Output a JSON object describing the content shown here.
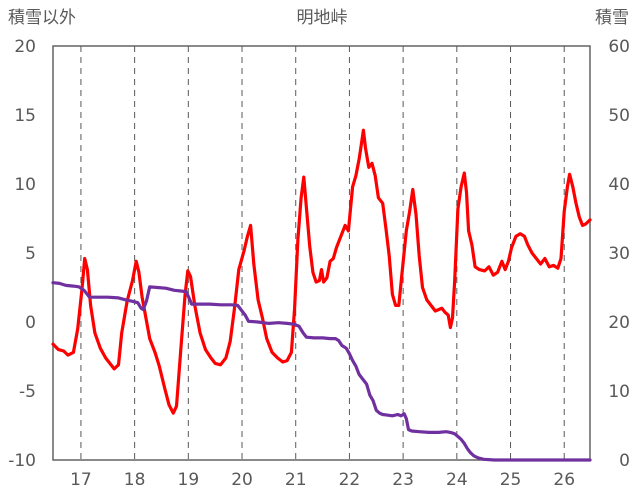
{
  "chart_data": {
    "type": "line",
    "title": "明地峠",
    "left_axis_label": "積雪以外",
    "right_axis_label": "積雪",
    "left_ylim": [
      -10,
      20
    ],
    "left_yticks": [
      "-10",
      "-5",
      "0",
      "5",
      "10",
      "15",
      "20"
    ],
    "right_ylim": [
      0,
      60
    ],
    "right_yticks": [
      "0",
      "10",
      "20",
      "30",
      "40",
      "50",
      "60"
    ],
    "xlim": [
      16.48,
      26.48
    ],
    "xticks": [
      "17",
      "18",
      "19",
      "20",
      "21",
      "22",
      "23",
      "24",
      "25",
      "26"
    ],
    "vertical_gridlines": [
      17,
      18,
      19,
      20,
      21,
      22,
      23,
      24,
      25,
      26
    ],
    "grid": "vertical-dashed",
    "colors": {
      "temperature": "#ff0000",
      "snow_depth": "#7030a0",
      "grid": "#595959",
      "axis_text": "#595959"
    },
    "series": [
      {
        "axis": "left",
        "color": "#ff0000",
        "points": [
          [
            16.48,
            -1.6
          ],
          [
            16.58,
            -2.0
          ],
          [
            16.68,
            -2.1
          ],
          [
            16.76,
            -2.4
          ],
          [
            16.86,
            -2.2
          ],
          [
            16.94,
            -0.5
          ],
          [
            17.02,
            2.4
          ],
          [
            17.07,
            4.6
          ],
          [
            17.12,
            3.8
          ],
          [
            17.18,
            1.2
          ],
          [
            17.26,
            -0.8
          ],
          [
            17.36,
            -1.9
          ],
          [
            17.46,
            -2.6
          ],
          [
            17.54,
            -3.0
          ],
          [
            17.62,
            -3.4
          ],
          [
            17.7,
            -3.1
          ],
          [
            17.76,
            -0.8
          ],
          [
            17.86,
            1.5
          ],
          [
            17.96,
            3.0
          ],
          [
            18.03,
            4.4
          ],
          [
            18.08,
            3.6
          ],
          [
            18.14,
            1.8
          ],
          [
            18.2,
            0.5
          ],
          [
            18.28,
            -1.2
          ],
          [
            18.38,
            -2.2
          ],
          [
            18.46,
            -3.2
          ],
          [
            18.56,
            -4.8
          ],
          [
            18.64,
            -6.0
          ],
          [
            18.72,
            -6.6
          ],
          [
            18.78,
            -6.1
          ],
          [
            18.86,
            -2.0
          ],
          [
            18.94,
            2.0
          ],
          [
            18.99,
            3.7
          ],
          [
            19.04,
            3.3
          ],
          [
            19.12,
            1.2
          ],
          [
            19.22,
            -0.8
          ],
          [
            19.32,
            -2.0
          ],
          [
            19.42,
            -2.6
          ],
          [
            19.5,
            -3.0
          ],
          [
            19.6,
            -3.1
          ],
          [
            19.7,
            -2.6
          ],
          [
            19.78,
            -1.4
          ],
          [
            19.86,
            1.0
          ],
          [
            19.94,
            3.8
          ],
          [
            20.04,
            5.2
          ],
          [
            20.1,
            6.2
          ],
          [
            20.16,
            7.0
          ],
          [
            20.22,
            4.2
          ],
          [
            20.3,
            1.6
          ],
          [
            20.38,
            0.3
          ],
          [
            20.46,
            -1.2
          ],
          [
            20.56,
            -2.2
          ],
          [
            20.66,
            -2.6
          ],
          [
            20.76,
            -2.9
          ],
          [
            20.84,
            -2.8
          ],
          [
            20.92,
            -2.2
          ],
          [
            20.98,
            1.0
          ],
          [
            21.04,
            6.0
          ],
          [
            21.1,
            9.0
          ],
          [
            21.15,
            10.5
          ],
          [
            21.2,
            8.2
          ],
          [
            21.26,
            5.5
          ],
          [
            21.32,
            3.6
          ],
          [
            21.38,
            2.9
          ],
          [
            21.44,
            3.0
          ],
          [
            21.48,
            3.8
          ],
          [
            21.52,
            2.9
          ],
          [
            21.58,
            3.2
          ],
          [
            21.64,
            4.4
          ],
          [
            21.7,
            4.6
          ],
          [
            21.76,
            5.4
          ],
          [
            21.84,
            6.2
          ],
          [
            21.92,
            7.0
          ],
          [
            21.98,
            6.6
          ],
          [
            22.06,
            9.8
          ],
          [
            22.12,
            10.6
          ],
          [
            22.18,
            11.8
          ],
          [
            22.22,
            12.8
          ],
          [
            22.26,
            13.9
          ],
          [
            22.3,
            12.6
          ],
          [
            22.36,
            11.2
          ],
          [
            22.42,
            11.5
          ],
          [
            22.48,
            10.6
          ],
          [
            22.54,
            9.0
          ],
          [
            22.62,
            8.6
          ],
          [
            22.68,
            6.8
          ],
          [
            22.74,
            4.8
          ],
          [
            22.8,
            2.0
          ],
          [
            22.86,
            1.2
          ],
          [
            22.92,
            1.2
          ],
          [
            22.98,
            3.6
          ],
          [
            23.06,
            6.6
          ],
          [
            23.12,
            8.0
          ],
          [
            23.18,
            9.6
          ],
          [
            23.24,
            7.8
          ],
          [
            23.3,
            4.8
          ],
          [
            23.36,
            2.5
          ],
          [
            23.44,
            1.6
          ],
          [
            23.52,
            1.2
          ],
          [
            23.6,
            0.8
          ],
          [
            23.66,
            0.9
          ],
          [
            23.72,
            1.0
          ],
          [
            23.78,
            0.7
          ],
          [
            23.84,
            0.5
          ],
          [
            23.88,
            -0.4
          ],
          [
            23.92,
            0.3
          ],
          [
            23.96,
            3.0
          ],
          [
            24.02,
            8.2
          ],
          [
            24.08,
            9.8
          ],
          [
            24.14,
            10.8
          ],
          [
            24.18,
            9.4
          ],
          [
            24.22,
            6.6
          ],
          [
            24.28,
            5.6
          ],
          [
            24.34,
            4.0
          ],
          [
            24.42,
            3.8
          ],
          [
            24.52,
            3.7
          ],
          [
            24.6,
            4.0
          ],
          [
            24.68,
            3.4
          ],
          [
            24.76,
            3.6
          ],
          [
            24.84,
            4.4
          ],
          [
            24.9,
            3.8
          ],
          [
            24.96,
            4.4
          ],
          [
            25.02,
            5.4
          ],
          [
            25.1,
            6.2
          ],
          [
            25.18,
            6.4
          ],
          [
            25.26,
            6.2
          ],
          [
            25.32,
            5.6
          ],
          [
            25.4,
            5.0
          ],
          [
            25.48,
            4.6
          ],
          [
            25.56,
            4.2
          ],
          [
            25.64,
            4.6
          ],
          [
            25.72,
            4.0
          ],
          [
            25.8,
            4.1
          ],
          [
            25.88,
            3.9
          ],
          [
            25.94,
            4.6
          ],
          [
            26.0,
            8.0
          ],
          [
            26.06,
            9.8
          ],
          [
            26.1,
            10.7
          ],
          [
            26.16,
            9.8
          ],
          [
            26.22,
            8.6
          ],
          [
            26.28,
            7.6
          ],
          [
            26.34,
            7.0
          ],
          [
            26.4,
            7.1
          ],
          [
            26.48,
            7.4
          ]
        ]
      },
      {
        "axis": "right",
        "color": "#7030a0",
        "points": [
          [
            16.48,
            25.7
          ],
          [
            16.6,
            25.6
          ],
          [
            16.72,
            25.3
          ],
          [
            16.86,
            25.2
          ],
          [
            16.96,
            25.1
          ],
          [
            17.06,
            24.6
          ],
          [
            17.16,
            23.6
          ],
          [
            17.3,
            23.6
          ],
          [
            17.5,
            23.6
          ],
          [
            17.7,
            23.5
          ],
          [
            17.84,
            23.2
          ],
          [
            17.96,
            23.0
          ],
          [
            18.06,
            22.8
          ],
          [
            18.12,
            22.0
          ],
          [
            18.16,
            21.8
          ],
          [
            18.22,
            23.0
          ],
          [
            18.28,
            25.1
          ],
          [
            18.42,
            25.0
          ],
          [
            18.58,
            24.9
          ],
          [
            18.74,
            24.6
          ],
          [
            18.86,
            24.5
          ],
          [
            18.96,
            24.4
          ],
          [
            19.04,
            23.0
          ],
          [
            19.06,
            22.6
          ],
          [
            19.2,
            22.6
          ],
          [
            19.4,
            22.6
          ],
          [
            19.6,
            22.5
          ],
          [
            19.8,
            22.5
          ],
          [
            19.92,
            22.4
          ],
          [
            19.98,
            21.8
          ],
          [
            20.06,
            21.0
          ],
          [
            20.12,
            20.1
          ],
          [
            20.3,
            20.0
          ],
          [
            20.5,
            19.8
          ],
          [
            20.68,
            19.9
          ],
          [
            20.84,
            19.8
          ],
          [
            20.96,
            19.7
          ],
          [
            21.06,
            19.4
          ],
          [
            21.14,
            18.4
          ],
          [
            21.2,
            17.8
          ],
          [
            21.34,
            17.7
          ],
          [
            21.5,
            17.7
          ],
          [
            21.64,
            17.6
          ],
          [
            21.74,
            17.6
          ],
          [
            21.8,
            17.3
          ],
          [
            21.86,
            16.6
          ],
          [
            21.94,
            16.2
          ],
          [
            22.0,
            15.4
          ],
          [
            22.06,
            14.4
          ],
          [
            22.12,
            13.6
          ],
          [
            22.18,
            12.4
          ],
          [
            22.26,
            11.6
          ],
          [
            22.32,
            11.0
          ],
          [
            22.38,
            9.4
          ],
          [
            22.44,
            8.6
          ],
          [
            22.5,
            7.2
          ],
          [
            22.56,
            6.8
          ],
          [
            22.62,
            6.6
          ],
          [
            22.7,
            6.5
          ],
          [
            22.8,
            6.4
          ],
          [
            22.9,
            6.6
          ],
          [
            22.96,
            6.4
          ],
          [
            23.02,
            6.7
          ],
          [
            23.06,
            6.0
          ],
          [
            23.1,
            4.4
          ],
          [
            23.16,
            4.2
          ],
          [
            23.3,
            4.1
          ],
          [
            23.48,
            4.0
          ],
          [
            23.66,
            4.0
          ],
          [
            23.8,
            4.1
          ],
          [
            23.88,
            4.0
          ],
          [
            23.96,
            3.8
          ],
          [
            24.02,
            3.4
          ],
          [
            24.08,
            3.0
          ],
          [
            24.14,
            2.4
          ],
          [
            24.2,
            1.6
          ],
          [
            24.26,
            1.0
          ],
          [
            24.32,
            0.6
          ],
          [
            24.4,
            0.3
          ],
          [
            24.5,
            0.1
          ],
          [
            24.7,
            0.0
          ],
          [
            25.0,
            0.0
          ],
          [
            25.4,
            0.0
          ],
          [
            25.8,
            0.0
          ],
          [
            26.2,
            0.0
          ],
          [
            26.48,
            0.0
          ]
        ]
      }
    ]
  }
}
